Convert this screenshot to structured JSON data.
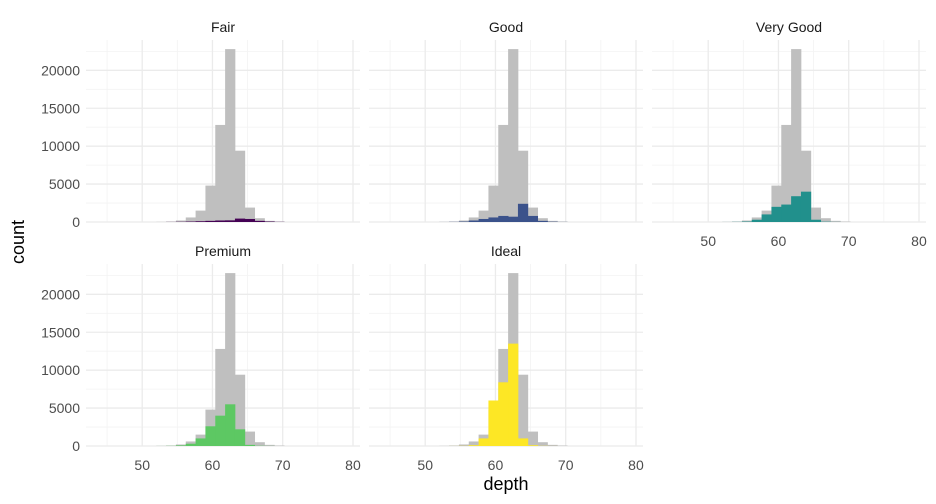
{
  "chart_data": {
    "type": "bar",
    "subtype": "faceted-histogram",
    "xlabel": "depth",
    "ylabel": "count",
    "xlim": [
      42,
      81
    ],
    "ylim": [
      0,
      24000
    ],
    "x_ticks": [
      50,
      60,
      70,
      80
    ],
    "y_ticks": [
      0,
      5000,
      10000,
      15000,
      20000
    ],
    "grid": true,
    "background_color": "#bfbfbf",
    "background_series": {
      "bins": [
        {
          "x0": 52,
          "x1": 53.4,
          "value": 20
        },
        {
          "x0": 53.4,
          "x1": 54.8,
          "value": 60
        },
        {
          "x0": 54.8,
          "x1": 56.2,
          "value": 200
        },
        {
          "x0": 56.2,
          "x1": 57.6,
          "value": 600
        },
        {
          "x0": 57.6,
          "x1": 59.0,
          "value": 1500
        },
        {
          "x0": 59.0,
          "x1": 60.4,
          "value": 4800
        },
        {
          "x0": 60.4,
          "x1": 61.8,
          "value": 12800
        },
        {
          "x0": 61.8,
          "x1": 63.2,
          "value": 22800
        },
        {
          "x0": 63.2,
          "x1": 64.6,
          "value": 9400
        },
        {
          "x0": 64.6,
          "x1": 66.0,
          "value": 1900
        },
        {
          "x0": 66.0,
          "x1": 67.4,
          "value": 500
        },
        {
          "x0": 67.4,
          "x1": 68.8,
          "value": 150
        },
        {
          "x0": 68.8,
          "x1": 70.2,
          "value": 60
        }
      ]
    },
    "facets": [
      {
        "name": "Fair",
        "color": "#440154",
        "values": [
          0,
          10,
          30,
          60,
          100,
          150,
          200,
          220,
          450,
          400,
          150,
          60,
          20
        ]
      },
      {
        "name": "Good",
        "color": "#3b528b",
        "values": [
          5,
          20,
          60,
          200,
          400,
          600,
          800,
          700,
          2400,
          800,
          150,
          40,
          10
        ]
      },
      {
        "name": "Very Good",
        "color": "#21908c",
        "values": [
          5,
          20,
          60,
          300,
          1000,
          2000,
          2300,
          3400,
          4000,
          300,
          40,
          10,
          0
        ]
      },
      {
        "name": "Premium",
        "color": "#5dc863",
        "values": [
          5,
          20,
          80,
          300,
          1000,
          2600,
          4000,
          5500,
          2200,
          150,
          30,
          10,
          0
        ]
      },
      {
        "name": "Ideal",
        "color": "#fde725",
        "values": [
          0,
          5,
          20,
          100,
          1000,
          6000,
          8400,
          13500,
          1000,
          100,
          20,
          5,
          0
        ]
      }
    ]
  }
}
